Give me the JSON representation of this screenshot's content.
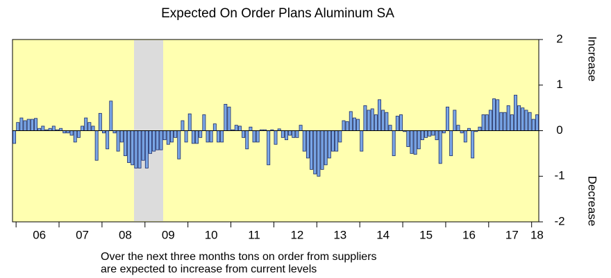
{
  "chart_data": {
    "type": "bar",
    "title": "Expected On Order Plans Aluminum SA",
    "annotations": [
      "Increase",
      "Decrease"
    ],
    "footnote": [
      "Over the next three months tons on order from suppliers",
      "are expected to increase from current levels"
    ],
    "categories": [
      null,
      null,
      null,
      null,
      null,
      null,
      null,
      "06",
      null,
      null,
      null,
      null,
      null,
      null,
      null,
      null,
      null,
      null,
      null,
      "07",
      null,
      null,
      null,
      null,
      null,
      null,
      null,
      null,
      null,
      null,
      null,
      "08",
      null,
      null,
      null,
      null,
      null,
      null,
      null,
      null,
      null,
      null,
      null,
      "09",
      null,
      null,
      null,
      null,
      null,
      null,
      null,
      null,
      null,
      null,
      null,
      "10",
      null,
      null,
      null,
      null,
      null,
      null,
      null,
      null,
      null,
      null,
      null,
      "11",
      null,
      null,
      null,
      null,
      null,
      null,
      null,
      null,
      null,
      null,
      null,
      "12",
      null,
      null,
      null,
      null,
      null,
      null,
      null,
      null,
      null,
      null,
      null,
      "13",
      null,
      null,
      null,
      null,
      null,
      null,
      null,
      null,
      null,
      null,
      null,
      "14",
      null,
      null,
      null,
      null,
      null,
      null,
      null,
      null,
      null,
      null,
      null,
      "15",
      null,
      null,
      null,
      null,
      null,
      null,
      null,
      null,
      null,
      null,
      null,
      "16",
      null,
      null,
      null,
      null,
      null,
      null,
      null,
      null,
      null,
      null,
      null,
      "17",
      null,
      null,
      null,
      null,
      null,
      null,
      "18"
    ],
    "values": [
      -0.28,
      0.18,
      0.28,
      0.22,
      0.25,
      0.25,
      0.27,
      0.05,
      0.1,
      0.02,
      0.05,
      0.1,
      0.02,
      0.05,
      -0.05,
      -0.05,
      -0.1,
      -0.25,
      -0.15,
      0.1,
      0.28,
      0.18,
      0.1,
      -0.65,
      0.38,
      -0.05,
      -0.4,
      0.65,
      -0.05,
      -0.45,
      -0.25,
      -0.55,
      -0.7,
      -0.75,
      -0.82,
      -0.82,
      -0.65,
      -0.82,
      -0.5,
      -0.45,
      -0.42,
      -0.42,
      -0.2,
      -0.3,
      -0.25,
      -0.15,
      -0.62,
      0.22,
      -0.25,
      0.37,
      -0.28,
      -0.28,
      -0.15,
      0.35,
      -0.25,
      -0.25,
      0.15,
      -0.25,
      -0.25,
      0.58,
      0.52,
      0.02,
      0.12,
      0.1,
      -0.15,
      -0.4,
      0.08,
      -0.25,
      -0.25,
      0.02,
      0.02,
      -0.75,
      0.02,
      -0.3,
      0.04,
      -0.15,
      -0.2,
      -0.1,
      -0.15,
      -0.15,
      0.12,
      -0.45,
      -0.6,
      -0.85,
      -0.95,
      -1.0,
      -0.85,
      -0.75,
      -0.6,
      -0.45,
      -0.45,
      -0.25,
      0.22,
      0.2,
      0.42,
      0.28,
      0.25,
      -0.45,
      0.55,
      0.45,
      0.48,
      0.35,
      0.68,
      0.45,
      0.4,
      0.12,
      -0.55,
      0.32,
      0.35,
      -0.02,
      -0.35,
      -0.5,
      -0.52,
      -0.4,
      -0.2,
      -0.15,
      -0.12,
      -0.1,
      -0.2,
      -0.72,
      -0.05,
      0.52,
      -0.55,
      0.45,
      0.12,
      -0.05,
      -0.25,
      0.05,
      -0.6,
      -0.02,
      0.08,
      0.35,
      0.35,
      0.45,
      0.7,
      0.68,
      0.4,
      0.4,
      0.55,
      0.35,
      0.78,
      0.55,
      0.5,
      0.45,
      0.4,
      0.25,
      0.35
    ],
    "color": "#7aa6e6",
    "ylim": [
      -2,
      2
    ],
    "yticks": [
      -2,
      -1,
      0,
      1,
      2
    ]
  }
}
